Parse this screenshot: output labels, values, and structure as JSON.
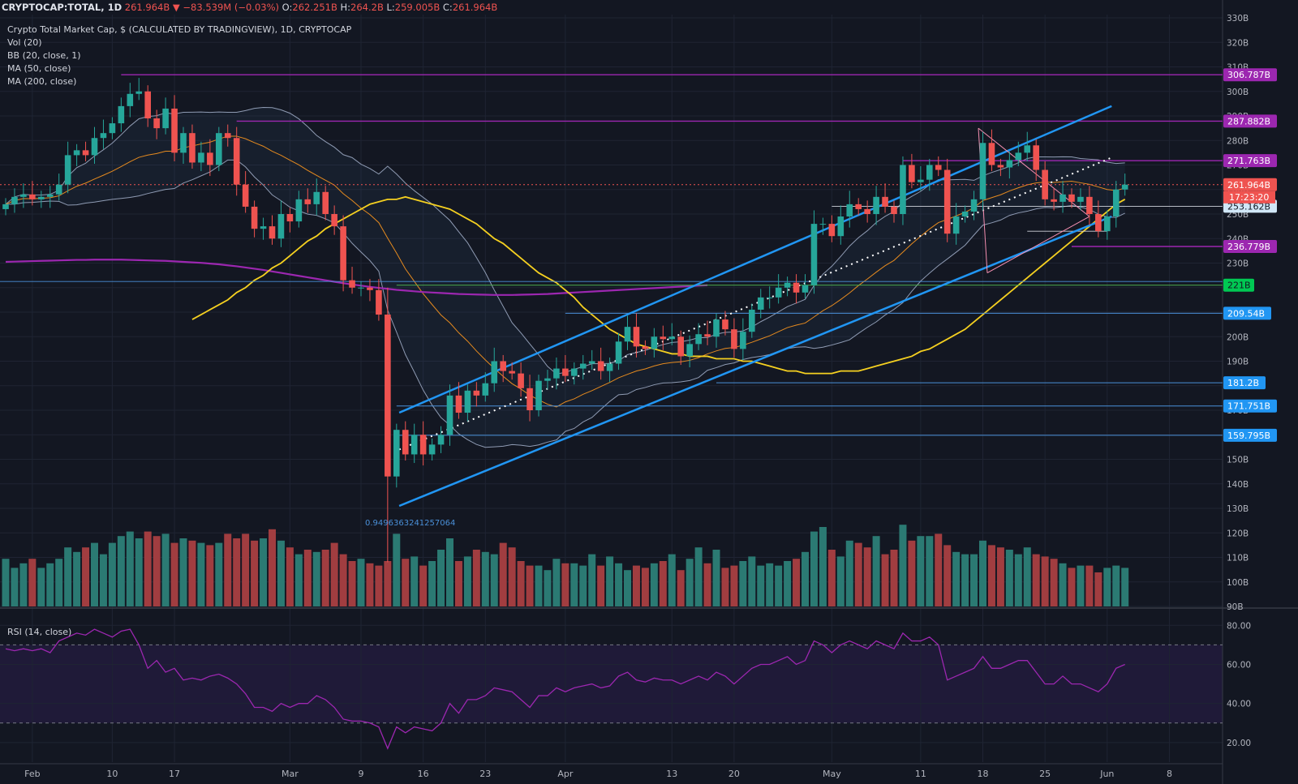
{
  "header": {
    "symbol": "CRYPTOCAP:TOTAL, 1D",
    "last": "261.964B",
    "change": "▼ −83.539M (−0.03%)",
    "o_label": "O:",
    "o": "262.251B",
    "h_label": "H:",
    "h": "264.2B",
    "l_label": "L:",
    "l": "259.005B",
    "c_label": "C:",
    "c": "261.964B"
  },
  "legend": {
    "title": "Crypto Total Market Cap, $ (CALCULATED BY TRADINGVIEW), 1D, CRYPTOCAP",
    "vol": "Vol (20)",
    "bb": "BB (20, close, 1)",
    "ma50": "MA (50, close)",
    "ma200": "MA (200, close)",
    "rsi": "RSI (14, close)"
  },
  "fib_label": "0.9496363241257064",
  "countdown": "17:23:20",
  "colors": {
    "bg": "#131722",
    "up": "#26a69a",
    "down": "#ef5350",
    "vol_up": "#2b7a73",
    "vol_down": "#a13d40",
    "channel": "#2196f3",
    "ma50": "#f5d020",
    "ma200": "#9c27b0",
    "bb": "#8f9bb3",
    "vol_ma": "#e58a1f",
    "level": "#9c27b0",
    "support": "#2196f3"
  },
  "chart_data": {
    "type": "candlestick",
    "title": "Crypto Total Market Cap, $ (CALCULATED BY TRADINGVIEW), 1D, CRYPTOCAP",
    "y_unit": "B",
    "ylim": [
      90,
      330
    ],
    "y_ticks": [
      "330B",
      "320B",
      "310B",
      "300B",
      "290B",
      "280B",
      "270B",
      "260B",
      "250B",
      "240B",
      "230B",
      "220B",
      "210B",
      "200B",
      "190B",
      "180B",
      "170B",
      "160B",
      "150B",
      "140B",
      "130B",
      "120B",
      "110B",
      "100B",
      "90B"
    ],
    "x_ticks": [
      {
        "label": "Feb",
        "date": "2020-02-01"
      },
      {
        "label": "10",
        "date": "2020-02-10"
      },
      {
        "label": "17",
        "date": "2020-02-17"
      },
      {
        "label": "Mar",
        "date": "2020-03-01"
      },
      {
        "label": "9",
        "date": "2020-03-09"
      },
      {
        "label": "16",
        "date": "2020-03-16"
      },
      {
        "label": "23",
        "date": "2020-03-23"
      },
      {
        "label": "Apr",
        "date": "2020-04-01"
      },
      {
        "label": "13",
        "date": "2020-04-13"
      },
      {
        "label": "20",
        "date": "2020-04-20"
      },
      {
        "label": "May",
        "date": "2020-05-01"
      },
      {
        "label": "11",
        "date": "2020-05-11"
      },
      {
        "label": "18",
        "date": "2020-05-18"
      },
      {
        "label": "25",
        "date": "2020-05-25"
      },
      {
        "label": "Jun",
        "date": "2020-06-01"
      },
      {
        "label": "8",
        "date": "2020-06-08"
      }
    ],
    "first_date": "2020-01-29",
    "close": [
      254,
      257,
      258,
      256,
      257,
      258,
      262,
      274,
      276,
      274,
      281,
      283,
      287,
      294,
      299,
      300,
      289,
      285,
      293,
      275,
      283,
      271,
      275,
      270,
      283,
      281,
      262,
      253,
      244,
      245,
      240,
      250,
      247,
      256,
      254,
      259,
      250,
      245,
      223,
      220,
      220,
      219,
      209,
      143,
      162,
      152,
      160,
      152,
      156,
      160,
      176,
      169,
      178,
      176,
      181,
      190,
      186,
      185,
      179,
      170,
      182,
      183,
      187,
      184,
      187,
      189,
      190,
      186,
      189,
      198,
      204,
      196,
      195,
      200,
      199,
      200,
      192,
      197,
      201,
      200,
      207,
      203,
      195,
      202,
      211,
      216,
      216,
      220,
      222,
      218,
      221,
      246,
      246,
      241,
      249,
      254,
      252,
      250,
      257,
      253,
      250,
      270,
      263,
      264,
      270,
      268,
      242,
      249,
      251,
      256,
      279,
      270,
      269,
      272,
      275,
      278,
      268,
      256,
      255,
      258,
      255,
      257,
      250,
      243,
      249,
      260,
      262
    ],
    "volume_B": [
      121,
      117,
      119,
      121,
      117,
      119,
      121,
      126,
      124,
      126,
      128,
      123,
      128,
      131,
      133,
      130,
      133,
      131,
      132,
      128,
      130,
      129,
      128,
      127,
      128,
      132,
      130,
      132,
      129,
      130,
      134,
      129,
      126,
      123,
      125,
      124,
      125,
      128,
      123,
      120,
      121,
      119,
      118,
      120,
      132,
      121,
      122,
      118,
      120,
      125,
      130,
      120,
      122,
      125,
      124,
      123,
      128,
      126,
      120,
      118,
      118,
      116,
      121,
      119,
      119,
      118,
      123,
      118,
      122,
      119,
      116,
      118,
      117,
      119,
      120,
      123,
      116,
      121,
      126,
      119,
      125,
      117,
      118,
      120,
      122,
      118,
      119,
      118,
      120,
      121,
      124,
      133,
      135,
      125,
      122,
      129,
      128,
      126,
      131,
      123,
      125,
      136,
      129,
      131,
      131,
      132,
      127,
      124,
      123,
      123,
      129,
      127,
      126,
      125,
      123,
      126,
      123,
      122,
      121,
      119,
      117,
      118,
      118,
      115,
      117,
      118,
      117
    ],
    "ma50": [
      207,
      209,
      211,
      213,
      215,
      218,
      220,
      223,
      225,
      228,
      230,
      233,
      236,
      239,
      241,
      244,
      246,
      248,
      250,
      252,
      254,
      255,
      256,
      256,
      257,
      256,
      255,
      254,
      253,
      252,
      250,
      248,
      246,
      243,
      240,
      238,
      235,
      232,
      229,
      226,
      224,
      222,
      219,
      216,
      212,
      209,
      206,
      203,
      201,
      199,
      197,
      196,
      195,
      194,
      193,
      193,
      192,
      192,
      192,
      191,
      191,
      191,
      190,
      190,
      189,
      188,
      187,
      186,
      186,
      185,
      185,
      185,
      185,
      186,
      186,
      186,
      187,
      188,
      189,
      190,
      191,
      192,
      194,
      195,
      197,
      199,
      201,
      203,
      206,
      209,
      212,
      215,
      218,
      221,
      224,
      227,
      230,
      233,
      236,
      239,
      242,
      245,
      248,
      251,
      254,
      256
    ],
    "ma200": [
      230.5,
      230.6,
      230.7,
      230.8,
      230.9,
      231,
      231.1,
      231.2,
      231.3,
      231.3,
      231.4,
      231.4,
      231.4,
      231.4,
      231.3,
      231.2,
      231.1,
      231,
      230.9,
      230.7,
      230.5,
      230.3,
      230.1,
      229.8,
      229.5,
      229.1,
      228.7,
      228.2,
      227.7,
      227.2,
      226.6,
      226,
      225.4,
      224.8,
      224.2,
      223.6,
      223,
      222.4,
      221.8,
      221.3,
      220.8,
      220.3,
      219.9,
      219.5,
      219.1,
      218.8,
      218.5,
      218.2,
      218,
      217.8,
      217.6,
      217.4,
      217.3,
      217.2,
      217.1,
      217,
      217,
      217,
      217.1,
      217.2,
      217.3,
      217.4,
      217.6,
      217.8,
      218,
      218.2,
      218.4,
      218.6,
      218.8,
      219,
      219.2,
      219.4,
      219.6,
      219.8,
      220,
      220.2,
      220.4,
      220.6,
      220.8,
      221
    ],
    "rsi": [
      68,
      67,
      68,
      67,
      68,
      66,
      72,
      74,
      76,
      75,
      78,
      76,
      74,
      77,
      78,
      70,
      58,
      62,
      56,
      58,
      52,
      53,
      52,
      54,
      55,
      53,
      50,
      45,
      38,
      38,
      36,
      40,
      38,
      40,
      40,
      44,
      42,
      38,
      32,
      31,
      31,
      30,
      28,
      17,
      28,
      25,
      28,
      27,
      26,
      30,
      40,
      35,
      42,
      42,
      44,
      48,
      47,
      46,
      42,
      38,
      44,
      44,
      48,
      46,
      48,
      49,
      50,
      48,
      49,
      54,
      56,
      52,
      51,
      53,
      52,
      52,
      50,
      52,
      54,
      52,
      56,
      54,
      50,
      54,
      58,
      60,
      60,
      62,
      64,
      60,
      62,
      72,
      70,
      66,
      70,
      72,
      70,
      68,
      72,
      70,
      68,
      76,
      72,
      72,
      74,
      70,
      52,
      54,
      56,
      58,
      64,
      58,
      58,
      60,
      62,
      62,
      56,
      50,
      50,
      54,
      50,
      50,
      48,
      46,
      50,
      58,
      60
    ],
    "rsi_ylim": [
      10,
      88
    ],
    "rsi_ticks": [
      "80.00",
      "60.00",
      "40.00",
      "20.00"
    ],
    "rsi_bands": [
      70,
      30
    ],
    "price_labels": [
      {
        "value": 306.787,
        "text": "306.787B",
        "kind": "level"
      },
      {
        "value": 287.882,
        "text": "287.882B",
        "kind": "level"
      },
      {
        "value": 271.763,
        "text": "271.763B",
        "kind": "level"
      },
      {
        "value": 261.964,
        "text": "261.964B",
        "kind": "last"
      },
      {
        "value": 253.162,
        "text": "253.162B",
        "kind": "bb"
      },
      {
        "value": 236.779,
        "text": "236.779B",
        "kind": "level"
      },
      {
        "value": 221,
        "text": "221B",
        "kind": "green"
      },
      {
        "value": 209.54,
        "text": "209.54B",
        "kind": "support"
      },
      {
        "value": 181.2,
        "text": "181.2B",
        "kind": "support"
      },
      {
        "value": 171.751,
        "text": "171.751B",
        "kind": "support"
      },
      {
        "value": 159.795,
        "text": "159.795B",
        "kind": "support"
      }
    ]
  }
}
